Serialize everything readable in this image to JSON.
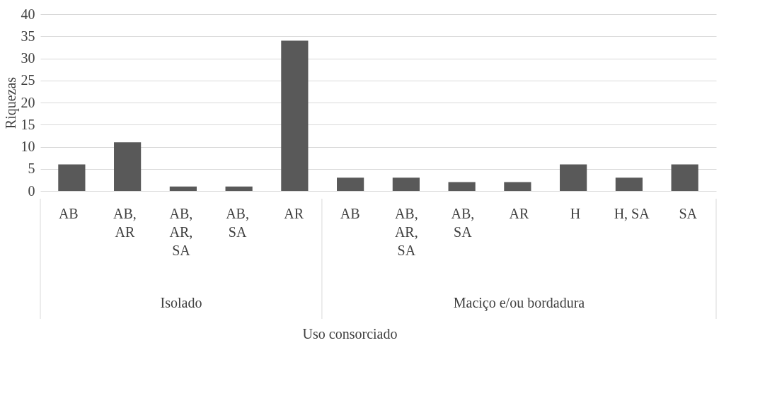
{
  "chart_data": {
    "type": "bar",
    "xlabel": "Uso consorciado",
    "ylabel": "Riquezas",
    "categories": [
      "AB",
      "AB, AR",
      "AB, AR, SA",
      "AB, SA",
      "AR",
      "AB",
      "AB, AR, SA",
      "AB, SA",
      "AR",
      "H",
      "H, SA",
      "SA"
    ],
    "values": [
      6,
      11,
      1,
      1,
      34,
      3,
      3,
      2,
      2,
      6,
      3,
      6
    ],
    "color": "#595959",
    "ylim": [
      0,
      40
    ],
    "yticks": [
      0,
      5,
      10,
      15,
      20,
      25,
      30,
      35,
      40
    ],
    "grid": "y",
    "annotations": [
      "Isolado",
      "Maciço e/ou bordadura"
    ]
  }
}
